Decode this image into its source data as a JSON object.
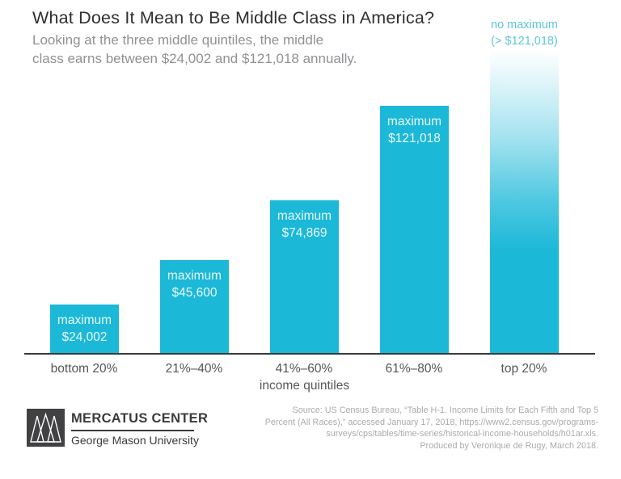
{
  "header": {
    "title": "What Does It Mean to Be Middle Class in America?",
    "subtitle_line1": "Looking at the three middle quintiles, the middle",
    "subtitle_line2": "class earns between $24,002 and $121,018 annually."
  },
  "chart_data": {
    "type": "bar",
    "title": "What Does It Mean to Be Middle Class in America?",
    "subtitle": "Looking at the three middle quintiles, the middle class earns between $24,002 and $121,018 annually.",
    "categories": [
      "bottom 20%",
      "21%–40%",
      "41%–60%",
      "61%–80%",
      "top 20%"
    ],
    "values": [
      24002,
      45600,
      74869,
      121018,
      null
    ],
    "bars": [
      {
        "category": "bottom 20%",
        "value": 24002,
        "label_line1": "maximum",
        "label_line2": "$24,002"
      },
      {
        "category": "21%–40%",
        "value": 45600,
        "label_line1": "maximum",
        "label_line2": "$45,600"
      },
      {
        "category": "41%–60%",
        "value": 74869,
        "label_line1": "maximum",
        "label_line2": "$74,869"
      },
      {
        "category": "61%–80%",
        "value": 121018,
        "label_line1": "maximum",
        "label_line2": "$121,018"
      },
      {
        "category": "top 20%",
        "value": null,
        "annotation_line1": "no maximum",
        "annotation_line2": "(> $121,018)"
      }
    ],
    "xlabel": "income quintiles",
    "ylabel": "",
    "grid": false,
    "legend": "none",
    "bar_color": "#1cb8d8",
    "annotation_color": "#5ec5dd",
    "axis_line_color": "#3a3a3c"
  },
  "footer": {
    "logo": {
      "icon": "mercatus-triangles-logo",
      "name": "MERCATUS CENTER",
      "subname": "George Mason University"
    },
    "source_lines": [
      "Source: US Census Bureau, “Table H-1. Income Limits for Each Fifth and Top 5",
      "Percent (All Races),” accessed January 17, 2018, https://www2.census.gov/programs-",
      "surveys/cps/tables/time-series/historical-income-households/h01ar.xls.",
      "Produced by Veronique de Rugy, March 2018."
    ]
  }
}
